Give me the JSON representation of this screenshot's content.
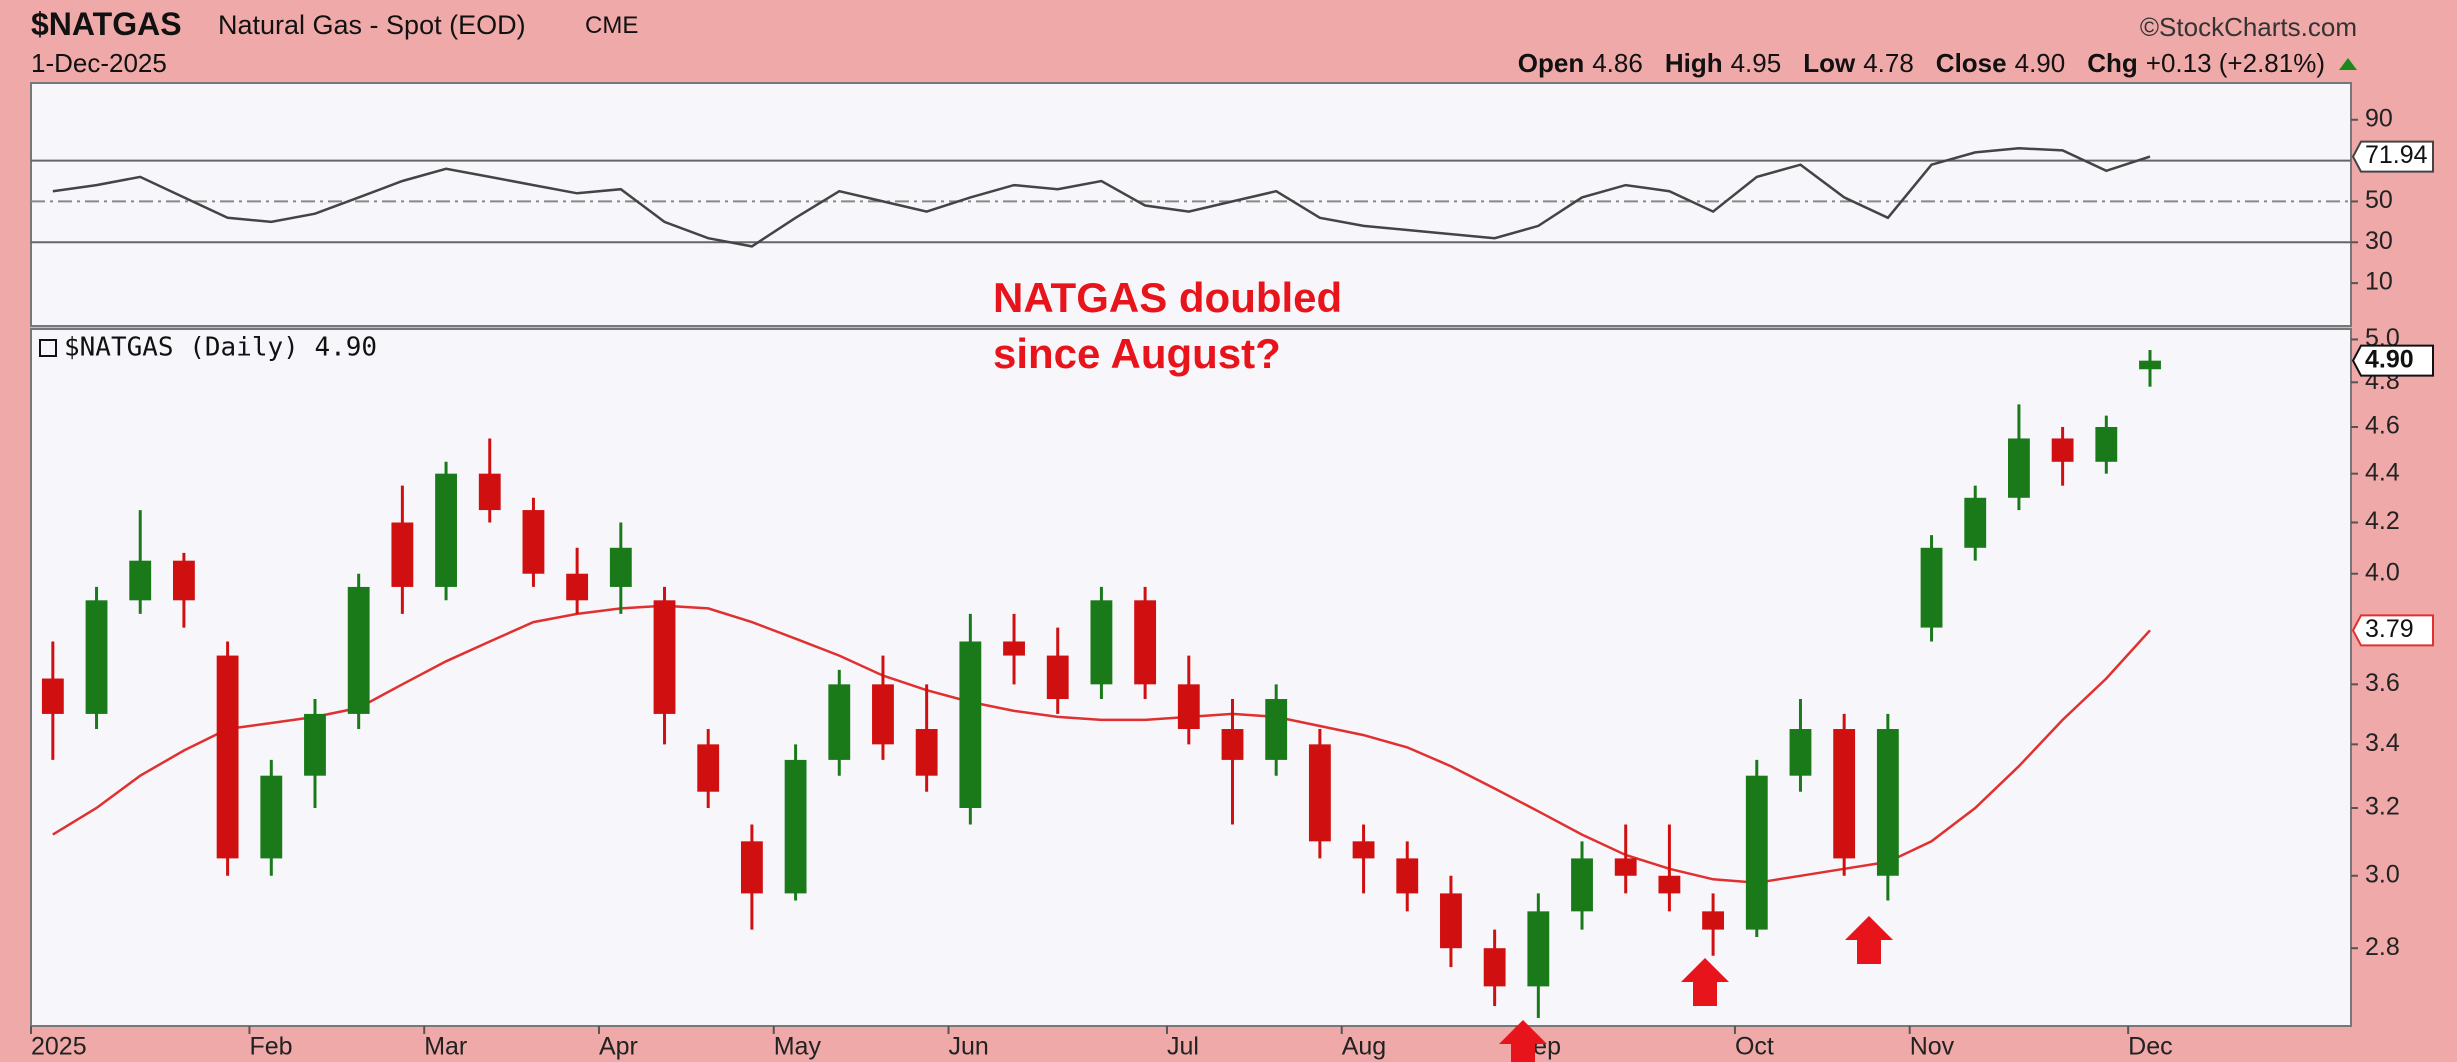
{
  "header": {
    "symbol": "$NATGAS",
    "name": "Natural Gas - Spot (EOD)",
    "exchange": "CME",
    "date": "1-Dec-2025",
    "credit": "©StockCharts.com",
    "quote": [
      {
        "label": "Open",
        "value": "4.86"
      },
      {
        "label": "High",
        "value": "4.95"
      },
      {
        "label": "Low",
        "value": "4.78"
      },
      {
        "label": "Close",
        "value": "4.90"
      },
      {
        "label": "Chg",
        "value": "+0.13 (+2.81%)"
      }
    ]
  },
  "chart_data": {
    "type": "candlestick",
    "legend": "$NATGAS (Daily) 4.90",
    "annotation": [
      "NATGAS doubled",
      "since August?"
    ],
    "categories": [
      "2025",
      null,
      null,
      null,
      null,
      "Feb",
      null,
      null,
      null,
      "Mar",
      null,
      null,
      null,
      "Apr",
      null,
      null,
      null,
      "May",
      null,
      null,
      null,
      "Jun",
      null,
      null,
      null,
      null,
      "Jul",
      null,
      null,
      null,
      "Aug",
      null,
      null,
      null,
      "Sep",
      null,
      null,
      null,
      null,
      "Oct",
      null,
      null,
      null,
      "Nov",
      null,
      null,
      null,
      null,
      "Dec"
    ],
    "open": [
      3.62,
      3.5,
      3.9,
      4.05,
      3.7,
      3.05,
      3.3,
      3.5,
      4.2,
      3.95,
      4.4,
      4.25,
      4.0,
      3.95,
      3.9,
      3.4,
      3.1,
      2.95,
      3.35,
      3.6,
      3.45,
      3.2,
      3.75,
      3.7,
      3.6,
      3.9,
      3.6,
      3.45,
      3.35,
      3.4,
      3.1,
      3.05,
      2.95,
      2.8,
      2.7,
      2.9,
      3.05,
      3.0,
      2.9,
      2.85,
      3.3,
      3.45,
      3.0,
      3.8,
      4.1,
      4.3,
      4.55,
      4.45,
      4.86
    ],
    "high": [
      3.75,
      3.95,
      4.25,
      4.08,
      3.75,
      3.35,
      3.55,
      4.0,
      4.35,
      4.45,
      4.55,
      4.3,
      4.1,
      4.2,
      3.95,
      3.45,
      3.15,
      3.4,
      3.65,
      3.7,
      3.6,
      3.85,
      3.85,
      3.8,
      3.95,
      3.95,
      3.7,
      3.55,
      3.6,
      3.45,
      3.15,
      3.1,
      3.0,
      2.85,
      2.95,
      3.1,
      3.15,
      3.15,
      2.95,
      3.35,
      3.55,
      3.5,
      3.5,
      4.15,
      4.35,
      4.7,
      4.6,
      4.65,
      4.95
    ],
    "low": [
      3.35,
      3.45,
      3.85,
      3.8,
      3.0,
      3.0,
      3.2,
      3.45,
      3.85,
      3.9,
      4.2,
      3.95,
      3.85,
      3.85,
      3.4,
      3.2,
      2.85,
      2.93,
      3.3,
      3.35,
      3.25,
      3.15,
      3.6,
      3.5,
      3.55,
      3.55,
      3.4,
      3.15,
      3.3,
      3.05,
      2.95,
      2.9,
      2.75,
      2.65,
      2.62,
      2.85,
      2.95,
      2.9,
      2.78,
      2.83,
      3.25,
      3.0,
      2.93,
      3.75,
      4.05,
      4.25,
      4.35,
      4.4,
      4.78
    ],
    "close": [
      3.5,
      3.9,
      4.05,
      3.9,
      3.05,
      3.3,
      3.5,
      3.95,
      3.95,
      4.4,
      4.25,
      4.0,
      3.9,
      4.1,
      3.5,
      3.25,
      2.95,
      3.35,
      3.6,
      3.4,
      3.3,
      3.75,
      3.7,
      3.55,
      3.9,
      3.6,
      3.45,
      3.35,
      3.55,
      3.1,
      3.05,
      2.95,
      2.8,
      2.7,
      2.9,
      3.05,
      3.0,
      2.95,
      2.85,
      3.3,
      3.45,
      3.05,
      3.45,
      4.1,
      4.3,
      4.55,
      4.45,
      4.6,
      4.9
    ],
    "last_price_label": "4.90",
    "up_color": "#1a7a1a",
    "down_color": "#d01010",
    "moving_average": {
      "color": "#e03030",
      "values": [
        3.12,
        3.2,
        3.3,
        3.38,
        3.45,
        3.47,
        3.49,
        3.52,
        3.6,
        3.68,
        3.75,
        3.82,
        3.85,
        3.87,
        3.88,
        3.87,
        3.82,
        3.76,
        3.7,
        3.63,
        3.58,
        3.54,
        3.51,
        3.49,
        3.48,
        3.48,
        3.49,
        3.5,
        3.49,
        3.46,
        3.43,
        3.39,
        3.33,
        3.26,
        3.19,
        3.12,
        3.06,
        3.02,
        2.99,
        2.98,
        3.0,
        3.02,
        3.04,
        3.1,
        3.2,
        3.33,
        3.48,
        3.62,
        3.79
      ]
    },
    "ylim": [
      2.6,
      5.05
    ],
    "log_scale": true,
    "yticks": [
      2.8,
      {
        "value": 3,
        "label": "3.0"
      },
      3.2,
      3.4,
      3.6,
      {
        "value": 4,
        "label": "4.0"
      },
      4.2,
      4.4,
      4.6,
      4.8,
      {
        "value": 5,
        "label": "5.0"
      }
    ],
    "rsi": {
      "color": "#444444",
      "ylim": [
        -11,
        108
      ],
      "yticks": [
        10,
        30,
        50,
        90
      ],
      "levels": [
        70,
        50,
        30
      ],
      "values": [
        55,
        58,
        62,
        52,
        42,
        40,
        44,
        52,
        60,
        66,
        62,
        58,
        54,
        56,
        40,
        32,
        28,
        42,
        55,
        50,
        45,
        52,
        58,
        56,
        60,
        48,
        45,
        50,
        55,
        42,
        38,
        36,
        34,
        32,
        38,
        52,
        58,
        55,
        45,
        62,
        68,
        52,
        42,
        68,
        74,
        76,
        75,
        65,
        71.94
      ]
    }
  }
}
